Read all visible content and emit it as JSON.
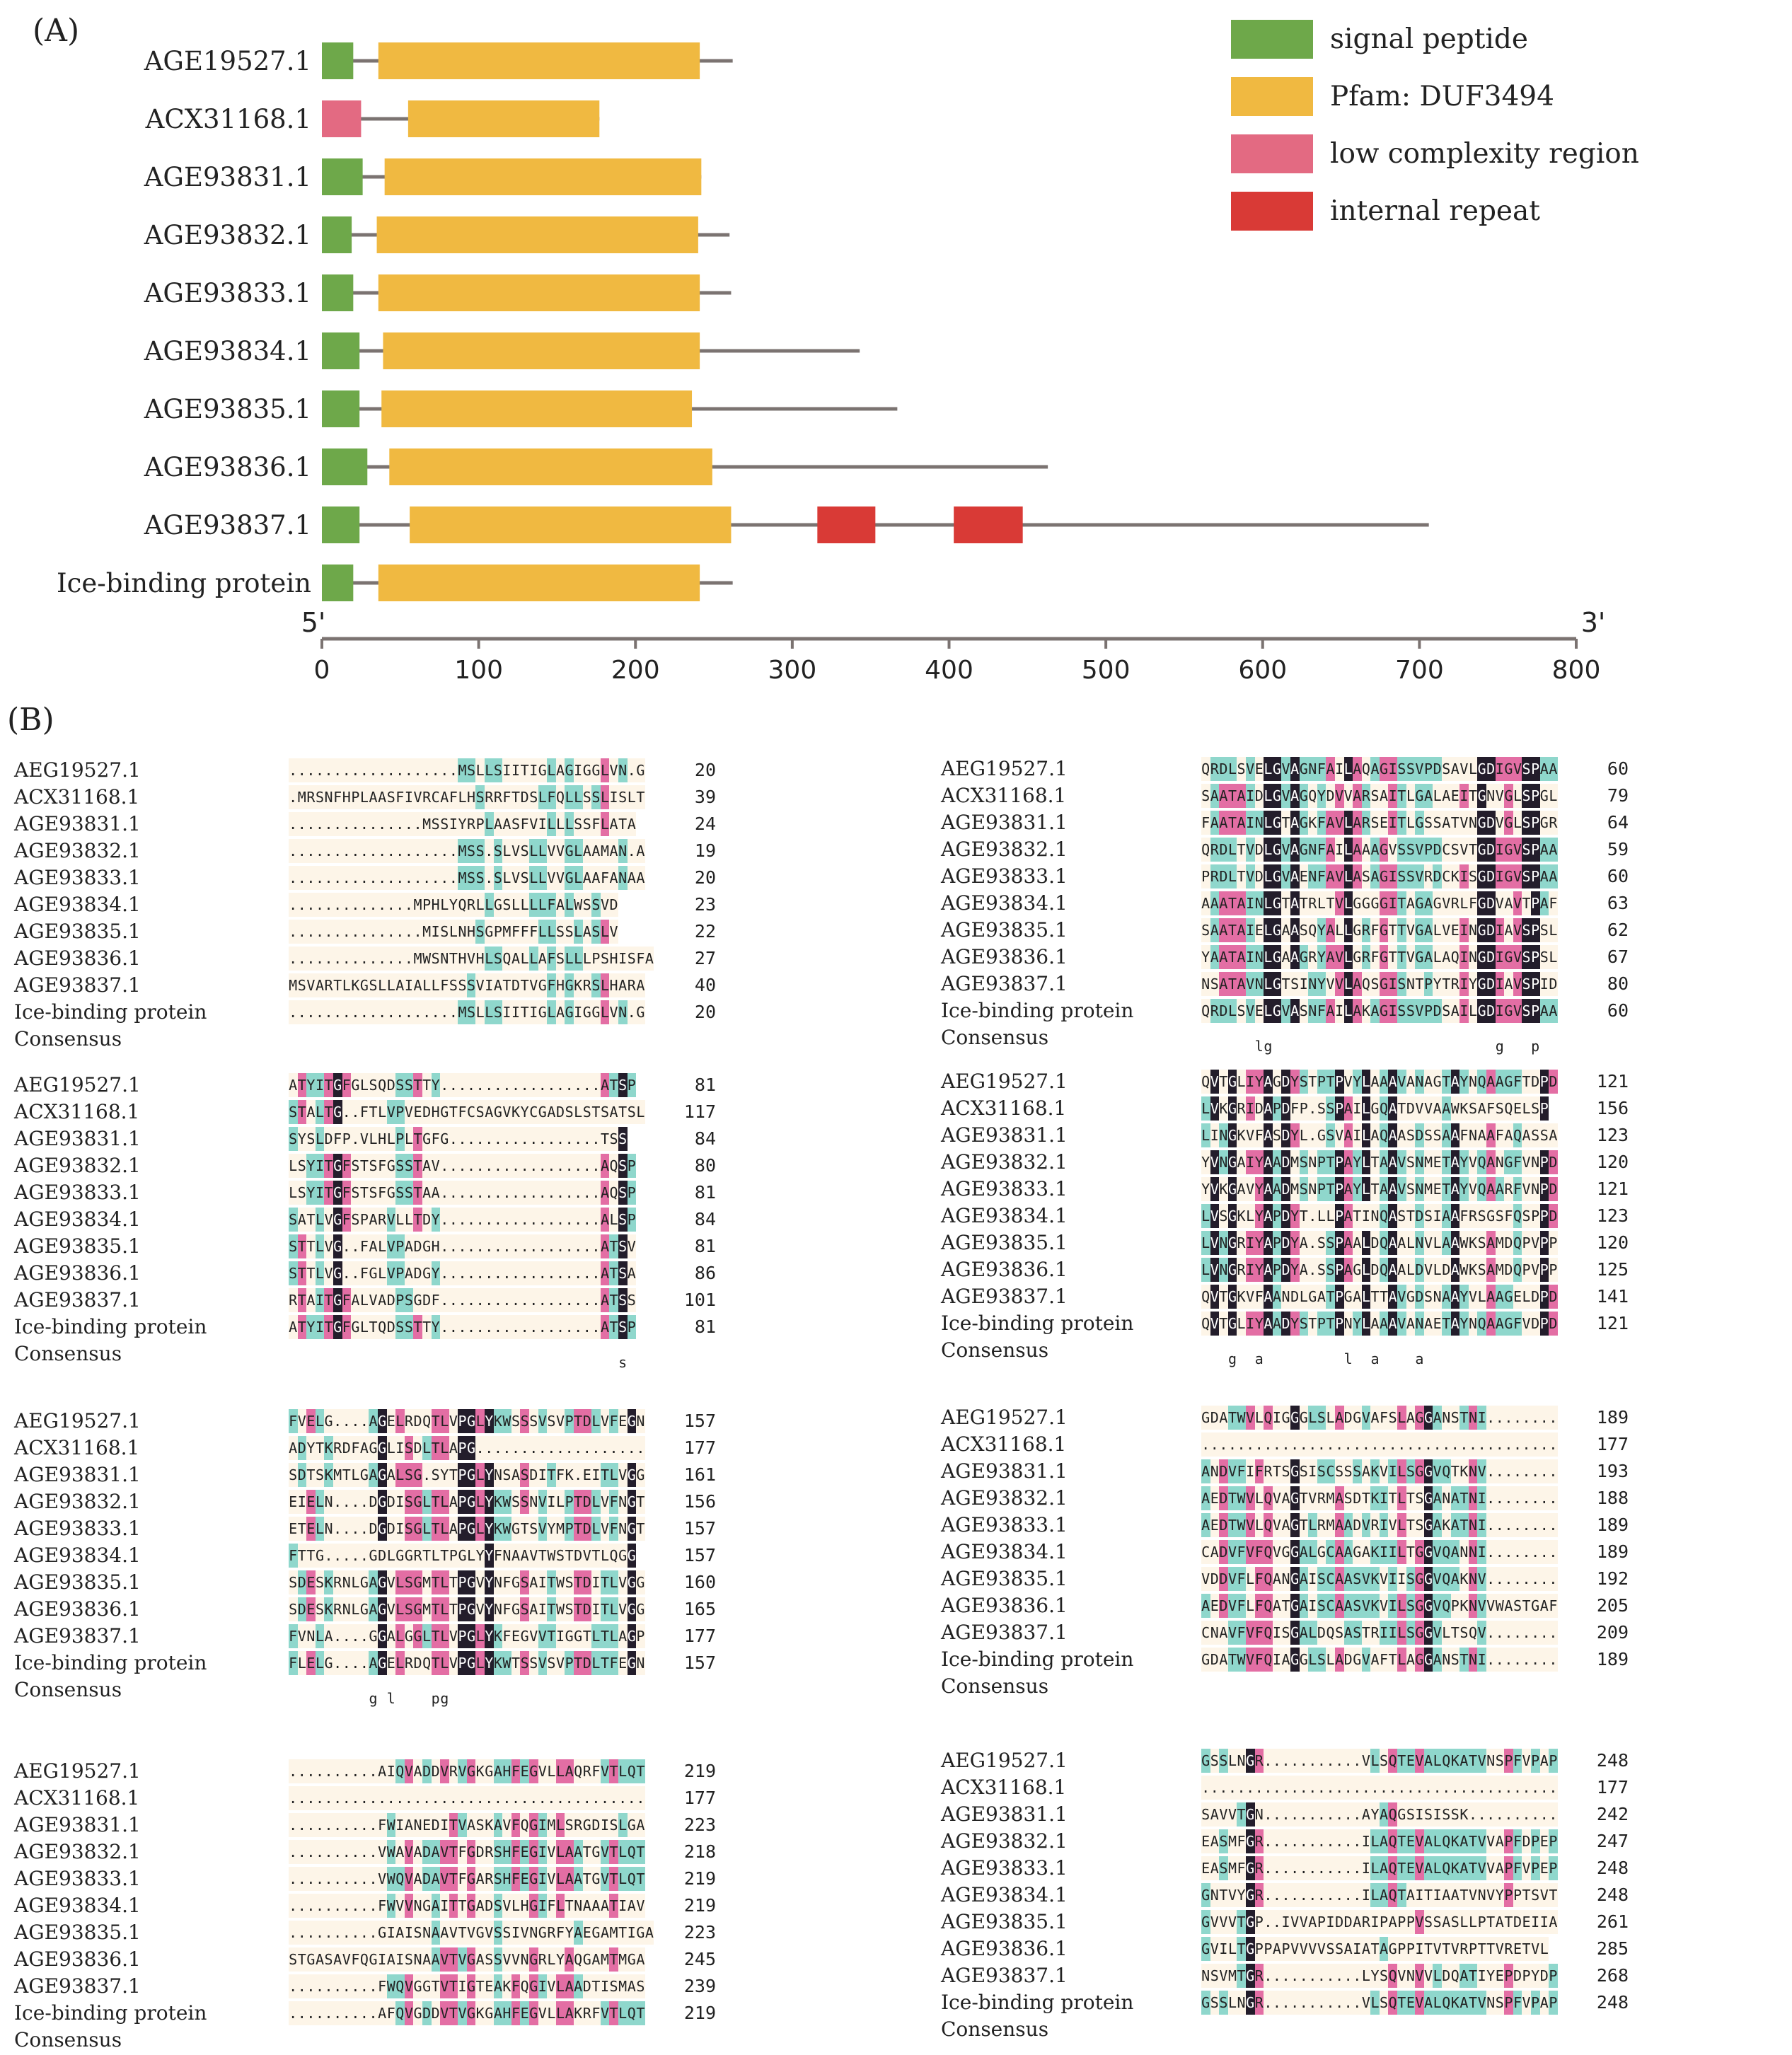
{
  "panel_a": {
    "label": "(A)",
    "axis": {
      "start_label": "5'",
      "end_label": "3'",
      "min": 0,
      "max": 800,
      "ticks": [
        0,
        100,
        200,
        300,
        400,
        500,
        600,
        700,
        800
      ]
    },
    "legend": [
      {
        "name": "signal peptide",
        "color": "#6ea84a"
      },
      {
        "name": "Pfam: DUF3494",
        "color": "#f0b941"
      },
      {
        "name": "low complexity region",
        "color": "#e36a82"
      },
      {
        "name": "internal repeat",
        "color": "#d93a36"
      }
    ],
    "proteins": [
      {
        "name": "AGE19527.1",
        "length": 262,
        "domains": [
          {
            "type": "signal peptide",
            "start": 0,
            "end": 20
          },
          {
            "type": "Pfam: DUF3494",
            "start": 36,
            "end": 241
          }
        ]
      },
      {
        "name": "ACX31168.1",
        "length": 177,
        "domains": [
          {
            "type": "low complexity region",
            "start": 0,
            "end": 25
          },
          {
            "type": "Pfam: DUF3494",
            "start": 55,
            "end": 177
          }
        ]
      },
      {
        "name": "AGE93831.1",
        "length": 242,
        "domains": [
          {
            "type": "signal peptide",
            "start": 0,
            "end": 26
          },
          {
            "type": "Pfam: DUF3494",
            "start": 40,
            "end": 242
          }
        ]
      },
      {
        "name": "AGE93832.1",
        "length": 260,
        "domains": [
          {
            "type": "signal peptide",
            "start": 0,
            "end": 19
          },
          {
            "type": "Pfam: DUF3494",
            "start": 35,
            "end": 240
          }
        ]
      },
      {
        "name": "AGE93833.1",
        "length": 261,
        "domains": [
          {
            "type": "signal peptide",
            "start": 0,
            "end": 20
          },
          {
            "type": "Pfam: DUF3494",
            "start": 36,
            "end": 241
          }
        ]
      },
      {
        "name": "AGE93834.1",
        "length": 343,
        "domains": [
          {
            "type": "signal peptide",
            "start": 0,
            "end": 24
          },
          {
            "type": "Pfam: DUF3494",
            "start": 39,
            "end": 241
          }
        ]
      },
      {
        "name": "AGE93835.1",
        "length": 367,
        "domains": [
          {
            "type": "signal peptide",
            "start": 0,
            "end": 24
          },
          {
            "type": "Pfam: DUF3494",
            "start": 38,
            "end": 236
          }
        ]
      },
      {
        "name": "AGE93836.1",
        "length": 463,
        "domains": [
          {
            "type": "signal peptide",
            "start": 0,
            "end": 29
          },
          {
            "type": "Pfam: DUF3494",
            "start": 43,
            "end": 249
          }
        ]
      },
      {
        "name": "AGE93837.1",
        "length": 706,
        "domains": [
          {
            "type": "signal peptide",
            "start": 0,
            "end": 24
          },
          {
            "type": "Pfam: DUF3494",
            "start": 56,
            "end": 261
          },
          {
            "type": "internal repeat",
            "start": 316,
            "end": 353
          },
          {
            "type": "internal repeat",
            "start": 403,
            "end": 447
          }
        ]
      },
      {
        "name": "Ice-binding protein",
        "length": 262,
        "domains": [
          {
            "type": "signal peptide",
            "start": 0,
            "end": 20
          },
          {
            "type": "Pfam: DUF3494",
            "start": 36,
            "end": 241
          }
        ]
      }
    ]
  },
  "panel_b": {
    "label": "(B)",
    "consensus_name": "Consensus",
    "blocks": [
      {
        "names": [
          "AEG19527.1",
          "ACX31168.1",
          "AGE93831.1",
          "AGE93832.1",
          "AGE93833.1",
          "AGE93834.1",
          "AGE93835.1",
          "AGE93836.1",
          "AGE93837.1",
          "Ice-binding protein"
        ],
        "sequences": [
          "...................MSLLSIITIGLAGIGGLVN.G",
          ".MRSNFHPLAASFIVRCAFLHSRRFTDSLFQLLSSLISLT",
          "...............MSSIYRPLAASFVILLLSSFLATA",
          "...................MSS.SLVSLLVVGLAAMAN.A",
          "...................MSS.SLVSLLVVGLAAFANAA",
          "..............MPHLYQRLLGSLLLLFALWSSVD",
          "...............MISLNHSGPMFFFLLSSLASLV",
          "..............MWSNTHVHLSQALLAFSLLLPSHISFA",
          "MSVARTLKGSLLAIALLFSSSVIATDTVGFHGKRSLHARA",
          "...................MSLLSIITIGLAGIGGLVN.G"
        ],
        "numbers": [
          "20",
          "39",
          "24",
          "19",
          "20",
          "23",
          "22",
          "27",
          "40",
          "20"
        ],
        "consensus": ""
      },
      {
        "names": [
          "AEG19527.1",
          "ACX31168.1",
          "AGE93831.1",
          "AGE93832.1",
          "AGE93833.1",
          "AGE93834.1",
          "AGE93835.1",
          "AGE93836.1",
          "AGE93837.1",
          "Ice-binding protein"
        ],
        "sequences": [
          "QRDLSVELGVAGNFAILAQAGISSVPDSAVLGDIGVSPAA",
          "SAATAIDLGVAGQYDVVARSAITLGALAEITGNVGLSPGL",
          "FAATAINLGTAGKFAVLARSEITLGSSATVNGDVGLSPGR",
          "QRDLTVDLGVAGNFAILAAAGVSSVPDCSVTGDIGVSPAA",
          "PRDLTVDLGVAENFAVLASAGISSVRDCKISGDIGVSPAA",
          "AAATAINLGTATRLTVLGGGGITAGAGVRLFGDVAVTPAF",
          "SAATAIELGAASQYALLGRFGTTVGALVEINGDIAVSPSL",
          "YAATAINLGAAGRYAVLGRFGTTVGALAQINGDIGVSPSL",
          "NSATAVNLGTSINYVVLAQSGISNTPYTRIYGDIAVSPID",
          "QRDLSVELGVASNFAILAKAGISSVPDSAILGDIGVSPAA"
        ],
        "numbers": [
          "60",
          "79",
          "64",
          "59",
          "60",
          "63",
          "62",
          "67",
          "80",
          "60"
        ],
        "consensus": "      lg                         g   p   "
      },
      {
        "names": [
          "AEG19527.1",
          "ACX31168.1",
          "AGE93831.1",
          "AGE93832.1",
          "AGE93833.1",
          "AGE93834.1",
          "AGE93835.1",
          "AGE93836.1",
          "AGE93837.1",
          "Ice-binding protein"
        ],
        "sequences": [
          "ATYITGFGLSQDSSTTY..................ATSP",
          "STALTG..FTLVPVEDHGTFCSAGVKYCGADSLSTSATSL",
          "SYSLDFP.VLHLPLTGFG.................TSS",
          "LSYITGFSTSFGSSTAV..................AQSP",
          "LSYITGFSTSFGSSTAA..................AQSP",
          "SATLVGFSPARVLLTDY..................ALSP",
          "STTLVG..FALVPADGH..................ATSV",
          "STTLVG..FGLVPADGY..................ATSA",
          "RTAITGFALVADPSGDF..................ATSS",
          "ATYITGFGLTQDSSTTY..................ATSP"
        ],
        "numbers": [
          "81",
          "117",
          "84",
          "80",
          "81",
          "84",
          "81",
          "86",
          "101",
          "81"
        ],
        "consensus": "                                     s "
      },
      {
        "names": [
          "AEG19527.1",
          "ACX31168.1",
          "AGE93831.1",
          "AGE93832.1",
          "AGE93833.1",
          "AGE93834.1",
          "AGE93835.1",
          "AGE93836.1",
          "AGE93837.1",
          "Ice-binding protein"
        ],
        "sequences": [
          "QVTGLIYAGDYSTPTPVYLAAAVANAGTAYNQAAGFTDPD",
          "LVKGRIDAPDFP.SSPAILGQATDVVAAWKSAFSQELSP",
          "LINGKVFASDYL.GSVAILAQAASDSSAAFNAAFAQASSA",
          "YVNGAIYAADMSNPTPAYLTAAVSNMETAYVQANGFVNPD",
          "YVKGAVYAADMSNPTPAYLTAAVSNMETAYVQAARFVNPD",
          "LVSGKLYAPDYT.LLPATINQASTDSIAAFRSGSFQSPPD",
          "LVNGRIYAPDYA.SSPAALDQAALNVLAAWKSAMDQPVPP",
          "LVNGRIYAPDYA.SSPAGLDQAALDVLDAWKSAMDQPVPP",
          "QVTGKVFAANDLGATPGALTTAVGDSNAAYVLAAGELDPD",
          "QVTGLIYAADYSTPTPNYLAAAVANAETAYNQAAGFVDPD"
        ],
        "numbers": [
          "121",
          "156",
          "123",
          "120",
          "121",
          "123",
          "120",
          "125",
          "141",
          "121"
        ],
        "consensus": "   g  a         l  a    a               "
      },
      {
        "names": [
          "AEG19527.1",
          "ACX31168.1",
          "AGE93831.1",
          "AGE93832.1",
          "AGE93833.1",
          "AGE93834.1",
          "AGE93835.1",
          "AGE93836.1",
          "AGE93837.1",
          "Ice-binding protein"
        ],
        "sequences": [
          "FVELG....AGELRDQTLVPGLYKWSSSVSVPTDLVFEGN",
          "ADYTKRDFAGGLISDLTLAPG...................",
          "SDTSKMTLGAGALSG.SYTPGLYNSASDITFK.EITLVGG",
          "EIELN....DGDISGLTLAPGLYKWSSNVILPTDLVFNGT",
          "ETELN....DGDISGLTLAPGLYKWGTSVYMPTDLVFNGT",
          "FTTG.....GDLGGRTLTPGLYYFNAAVTWSTDVTLQGG",
          "SDESKRNLGAGVLSGMTLTPGVYNFGSAITWSTDITLVGG",
          "SDESKRNLGAGVLSGMTLTPGVYNFGSAITWSTDITLVGG",
          "FVNLA....GGALGGLTLVPGLYKFEGVVTIGGTLTLAGP",
          "FLELG....AGELRDQTLVPGLYKWTSSVSVPTDLTFEGN"
        ],
        "numbers": [
          "157",
          "177",
          "161",
          "156",
          "157",
          "157",
          "160",
          "165",
          "177",
          "157"
        ],
        "consensus": "         g l    pg                      "
      },
      {
        "names": [
          "AEG19527.1",
          "ACX31168.1",
          "AGE93831.1",
          "AGE93832.1",
          "AGE93833.1",
          "AGE93834.1",
          "AGE93835.1",
          "AGE93836.1",
          "AGE93837.1",
          "Ice-binding protein"
        ],
        "sequences": [
          "GDATWVLQIGGGLSLADGVAFSLAGGANSTNI........",
          "........................................",
          "ANDVFIFRTSGSISCSSSAKVILSGGVQTKNV........",
          "AEDTWVLQVAGTVRMASDTKITLTSGANATNI........",
          "AEDTWVLQVAGTLRMAADVRIVLTSGAKATNI........",
          "CADVFVFQVGGALGCAAGAKIILTGGVQANNI........",
          "VDDVFLFQANGAISCAASVKVIISGGVQAKNV........",
          "AEDVFLFQATGAISCAASVKVILSGGVQPKNVVWASTGAF",
          "CNAVFVFQISGALDQSASTRIILSGGVLTSQV........",
          "GDATWVFQIAGGLSLADGVAFTLAGGANSTNI........"
        ],
        "numbers": [
          "189",
          "177",
          "193",
          "188",
          "189",
          "189",
          "192",
          "205",
          "209",
          "189"
        ],
        "consensus": ""
      },
      {
        "names": [
          "AEG19527.1",
          "ACX31168.1",
          "AGE93831.1",
          "AGE93832.1",
          "AGE93833.1",
          "AGE93834.1",
          "AGE93835.1",
          "AGE93836.1",
          "AGE93837.1",
          "Ice-binding protein"
        ],
        "sequences": [
          "..........AIQVADDVRVGKGAHFEGVLLAQRFVTLQT",
          "........................................",
          "..........FWIANEDITVASKAVFQGIMLSRGDISLGA",
          "..........VWAVADAVTFGDRSHFEGIVLAATGVTLQT",
          "..........VWQVADAVTFGARSHFEGIVLAATGVTLQT",
          "..........FWVVNGAITTGADSVLHGIFLTNAAATIAV",
          "..........GIAISNAAVTVGVSSIVNGRFYAEGAMTIGA",
          "STGASAVFQGIAISNAAVTVGASSVVNGRLYAQGAMTMGA",
          "..........FWQVGGTVTIGTEAKFQGIVLAADTISMAS",
          "..........AFQVGDDVTVGKGAHFEGVLLAKRFVTLQT"
        ],
        "numbers": [
          "219",
          "177",
          "223",
          "218",
          "219",
          "219",
          "223",
          "245",
          "239",
          "219"
        ],
        "consensus": ""
      },
      {
        "names": [
          "AEG19527.1",
          "ACX31168.1",
          "AGE93831.1",
          "AGE93832.1",
          "AGE93833.1",
          "AGE93834.1",
          "AGE93835.1",
          "AGE93836.1",
          "AGE93837.1",
          "Ice-binding protein"
        ],
        "sequences": [
          "GSSLNGR...........VLSQTEVALQKATVNSPFVPAP",
          "........................................",
          "SAVVTGN...........AYAQGSISISSK..........",
          "EASMFGR...........ILAQTEVALQKATVVAPFDPEP",
          "EASMFGR...........ILAQTEVALQKATVVAPFVPEP",
          "GNTVYGR...........ILAQTAITIAATVNVYPPTSVT",
          "GVVVTGP..IVVAPIDDARIPAPPVSSASLLPTATDEIIA",
          "GVILTGPPAPVVVVSSAIATAGPPITVTVRPTTVRETVL",
          "NSVMTGR...........LYSQVNVVLDQATIYEPDPYDP",
          "GSSLNGR...........VLSQTEVALQKATVNSPFVPAP"
        ],
        "numbers": [
          "248",
          "177",
          "242",
          "247",
          "248",
          "248",
          "261",
          "285",
          "268",
          "248"
        ],
        "consensus": ""
      }
    ]
  }
}
